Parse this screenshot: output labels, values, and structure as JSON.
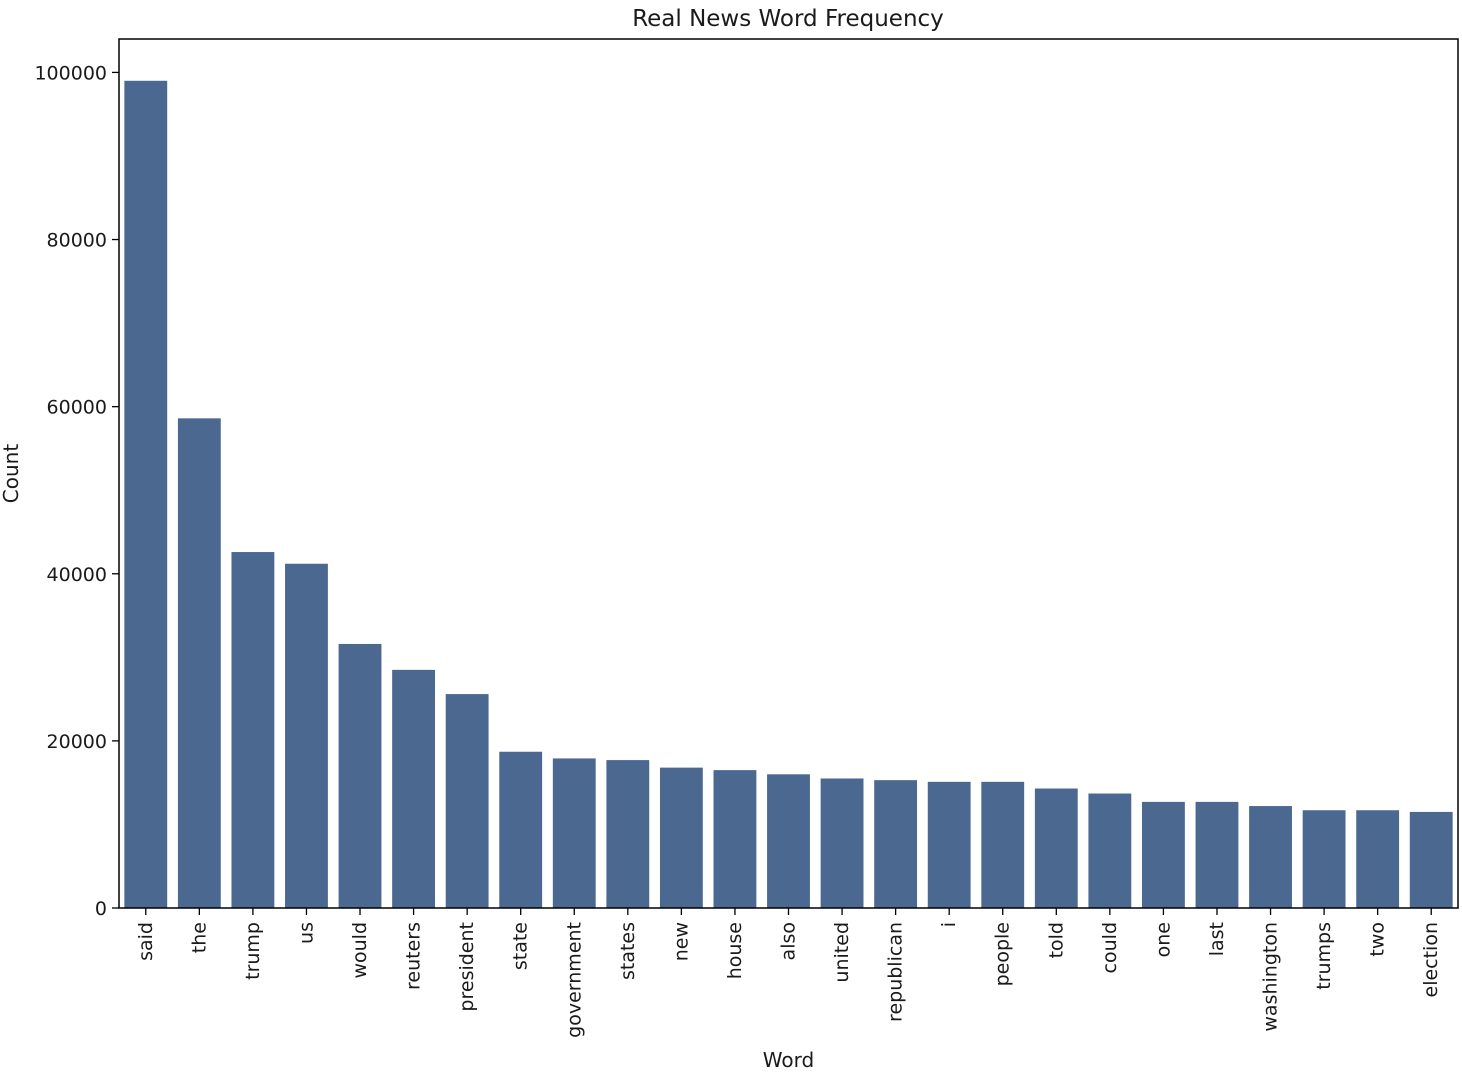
{
  "chart_data": {
    "type": "bar",
    "title": "Real News Word Frequency",
    "xlabel": "Word",
    "ylabel": "Count",
    "categories": [
      "said",
      "the",
      "trump",
      "us",
      "would",
      "reuters",
      "president",
      "state",
      "government",
      "states",
      "new",
      "house",
      "also",
      "united",
      "republican",
      "i",
      "people",
      "told",
      "could",
      "one",
      "last",
      "washington",
      "trumps",
      "two",
      "election"
    ],
    "values": [
      99000,
      58600,
      42600,
      41200,
      31600,
      28500,
      25600,
      18700,
      17900,
      17700,
      16800,
      16500,
      16000,
      15500,
      15300,
      15100,
      15100,
      14300,
      13700,
      12700,
      12700,
      12200,
      11700,
      11700,
      11500
    ],
    "ylim": [
      0,
      104000
    ],
    "yticks": [
      "0",
      "20000",
      "40000",
      "60000",
      "80000",
      "100000"
    ],
    "bar_color": "#4a6890",
    "grid": false
  }
}
